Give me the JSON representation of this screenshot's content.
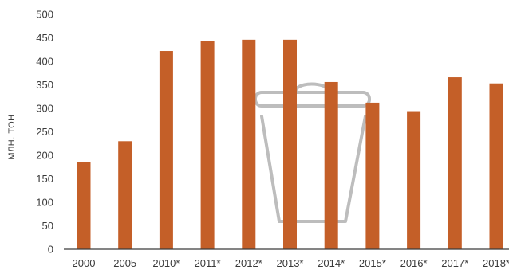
{
  "chart_data": {
    "type": "bar",
    "categories": [
      "2000",
      "2005",
      "2010*",
      "2011*",
      "2012*",
      "2013*",
      "2014*",
      "2015*",
      "2016*",
      "2017*",
      "2018*"
    ],
    "values": [
      185,
      230,
      422,
      443,
      446,
      446,
      356,
      312,
      294,
      366,
      353
    ],
    "ylabel": "МЛН. ТОН",
    "yticks": [
      0,
      50,
      100,
      150,
      200,
      250,
      300,
      350,
      400,
      450,
      500
    ],
    "ylim": [
      0,
      500
    ],
    "bar_color": "#c45f28",
    "grid": false,
    "watermark_icon": "bucket-icon"
  }
}
